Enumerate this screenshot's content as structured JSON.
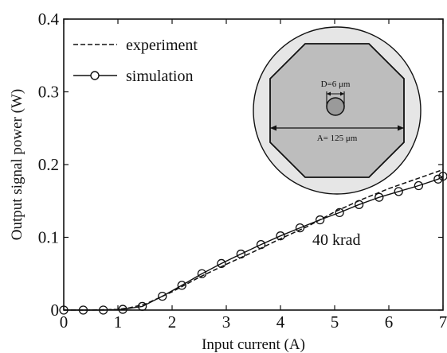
{
  "chart_data": {
    "type": "line",
    "xlabel": "Input current (A)",
    "ylabel": "Output signal power (W)",
    "xlim": [
      0,
      7
    ],
    "ylim": [
      0,
      0.4
    ],
    "x_ticks": [
      "0",
      "1",
      "2",
      "3",
      "4",
      "5",
      "6",
      "7"
    ],
    "y_ticks": [
      "0",
      "0.1",
      "0.2",
      "0.3",
      "0.4"
    ],
    "grid": false,
    "legend_position": "top-left",
    "annotation": "40 krad",
    "series": [
      {
        "name": "experiment",
        "style": "dashed",
        "x": [
          0,
          0.5,
          1.0,
          1.2,
          1.5,
          2.0,
          2.5,
          3.0,
          3.5,
          4.0,
          4.5,
          5.0,
          5.5,
          6.0,
          6.5,
          7.0
        ],
        "y": [
          0,
          0,
          0.001,
          0.003,
          0.008,
          0.025,
          0.045,
          0.063,
          0.08,
          0.098,
          0.115,
          0.135,
          0.152,
          0.167,
          0.18,
          0.193
        ]
      },
      {
        "name": "simulation",
        "style": "solid-circle",
        "x": [
          0,
          0.36,
          0.73,
          1.09,
          1.45,
          1.82,
          2.18,
          2.55,
          2.91,
          3.27,
          3.64,
          4.0,
          4.36,
          4.73,
          5.09,
          5.45,
          5.82,
          6.18,
          6.55,
          6.91,
          7.0
        ],
        "y": [
          0,
          0,
          0,
          0.001,
          0.005,
          0.019,
          0.034,
          0.05,
          0.064,
          0.077,
          0.09,
          0.102,
          0.113,
          0.124,
          0.134,
          0.145,
          0.155,
          0.163,
          0.171,
          0.18,
          0.184
        ]
      }
    ],
    "inset": {
      "label_D": "D=6 μm",
      "label_A": "A= 125 μm"
    }
  },
  "colors": {
    "line": "#111111",
    "inset_outer": "#e6e6e6",
    "inset_inner": "#bdbdbd",
    "core": "#9a9a9a"
  }
}
